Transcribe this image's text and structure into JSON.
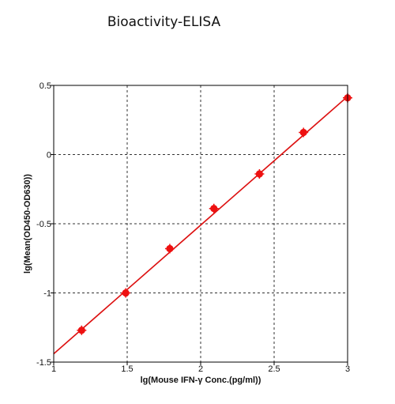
{
  "page": {
    "title": "Bioactivity-ELISA"
  },
  "chart_data": {
    "type": "scatter",
    "title": "",
    "xlabel": "lg(Mouse IFN-γ Conc.(pg/ml))",
    "ylabel": "lg(Mean(OD450-OD630))",
    "xlim": [
      1,
      3
    ],
    "ylim": [
      -1.5,
      0.5
    ],
    "x_ticks": [
      "1",
      "1.5",
      "2",
      "2.5",
      "3"
    ],
    "y_ticks": [
      "0.5",
      "0",
      "-0.5",
      "-1",
      "-1.5"
    ],
    "grid": true,
    "legend": "none",
    "series": [
      {
        "points": [
          {
            "x": 1.19,
            "y": -1.27
          },
          {
            "x": 1.49,
            "y": -1.0
          },
          {
            "x": 1.79,
            "y": -0.68
          },
          {
            "x": 2.09,
            "y": -0.39
          },
          {
            "x": 2.4,
            "y": -0.14
          },
          {
            "x": 2.7,
            "y": 0.16
          },
          {
            "x": 3.0,
            "y": 0.41
          }
        ]
      }
    ],
    "fit_line": {
      "x": [
        1.0,
        3.0
      ],
      "y": [
        -1.44,
        0.42
      ]
    },
    "colors": {
      "points": "#ee1111",
      "fit_line": "#dd1111",
      "grid": "#333333",
      "axis": "#000000"
    }
  }
}
